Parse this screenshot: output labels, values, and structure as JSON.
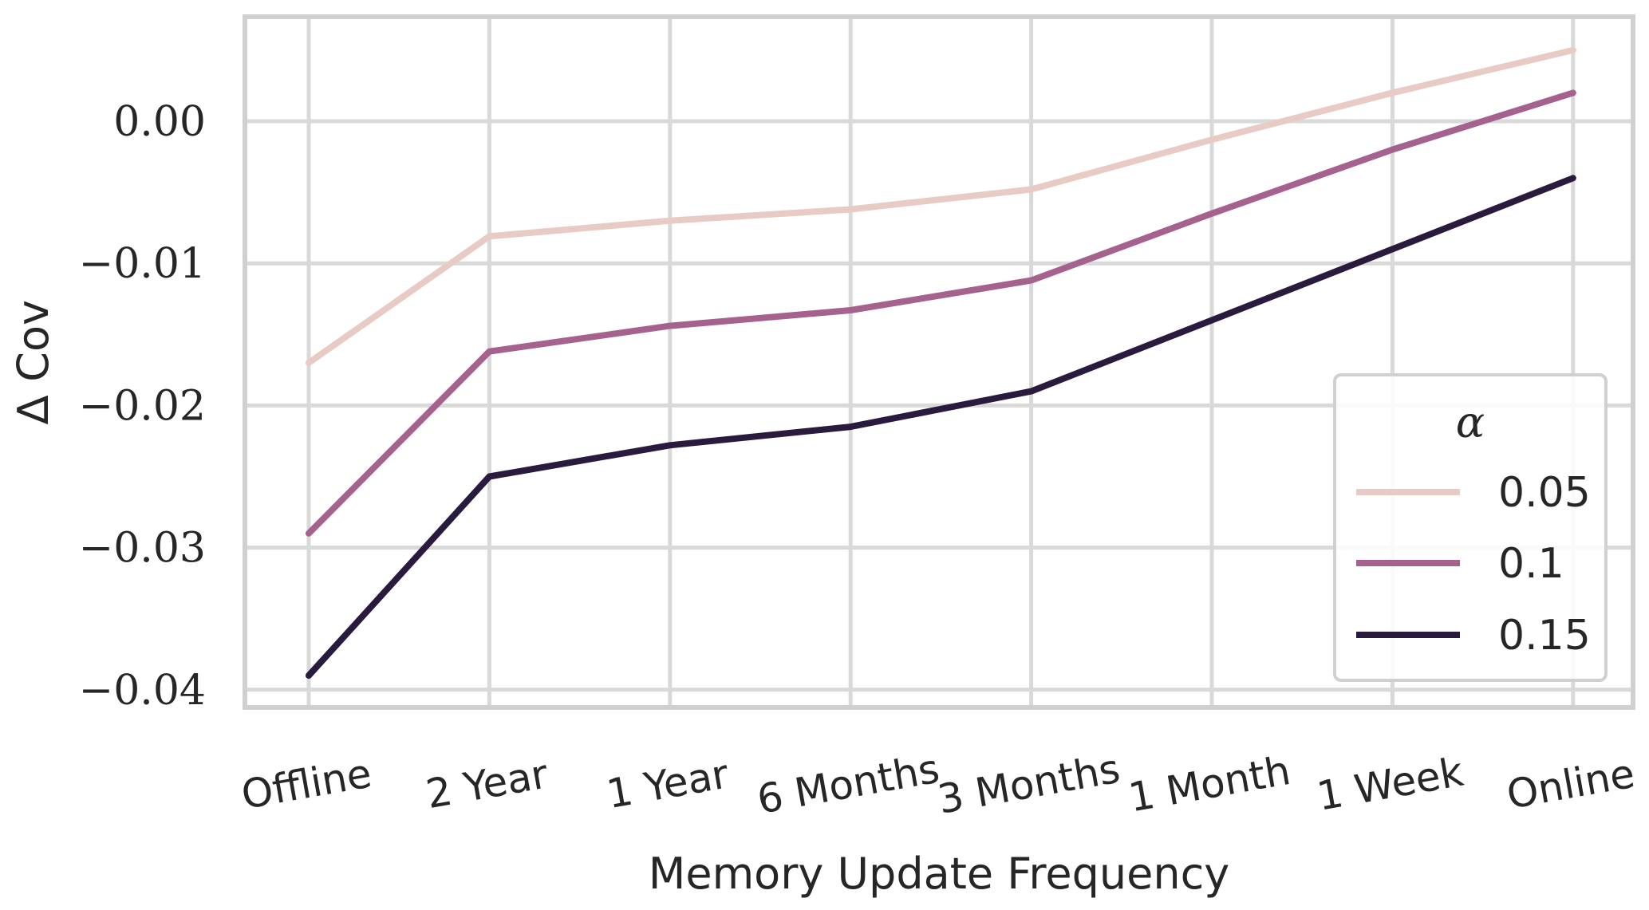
{
  "chart_data": {
    "type": "line",
    "title": "",
    "xlabel": "Memory Update Frequency",
    "ylabel": "∆ Cov",
    "categories": [
      "Offline",
      "2 Year",
      "1 Year",
      "6 Months",
      "3 Months",
      "1 Month",
      "1 Week",
      "Online"
    ],
    "yticks": [
      0.0,
      -0.01,
      -0.02,
      -0.03,
      -0.04
    ],
    "ytick_labels": [
      "0.00",
      "−0.01",
      "−0.02",
      "−0.03",
      "−0.04"
    ],
    "ylim": [
      -0.0408,
      0.0074
    ],
    "grid": true,
    "legend": {
      "title": "α",
      "placement": "lower-right"
    },
    "series": [
      {
        "name": "0.05",
        "color": "#e8cbc4",
        "values": [
          -0.017,
          -0.0081,
          -0.007,
          -0.0062,
          -0.0048,
          -0.0013,
          0.002,
          0.005
        ]
      },
      {
        "name": "0.1",
        "color": "#a5628f",
        "values": [
          -0.029,
          -0.0162,
          -0.0144,
          -0.0133,
          -0.0112,
          -0.0065,
          -0.002,
          0.002
        ]
      },
      {
        "name": "0.15",
        "color": "#2a1a3e",
        "values": [
          -0.039,
          -0.025,
          -0.0228,
          -0.0215,
          -0.019,
          -0.014,
          -0.009,
          -0.004
        ]
      }
    ]
  }
}
